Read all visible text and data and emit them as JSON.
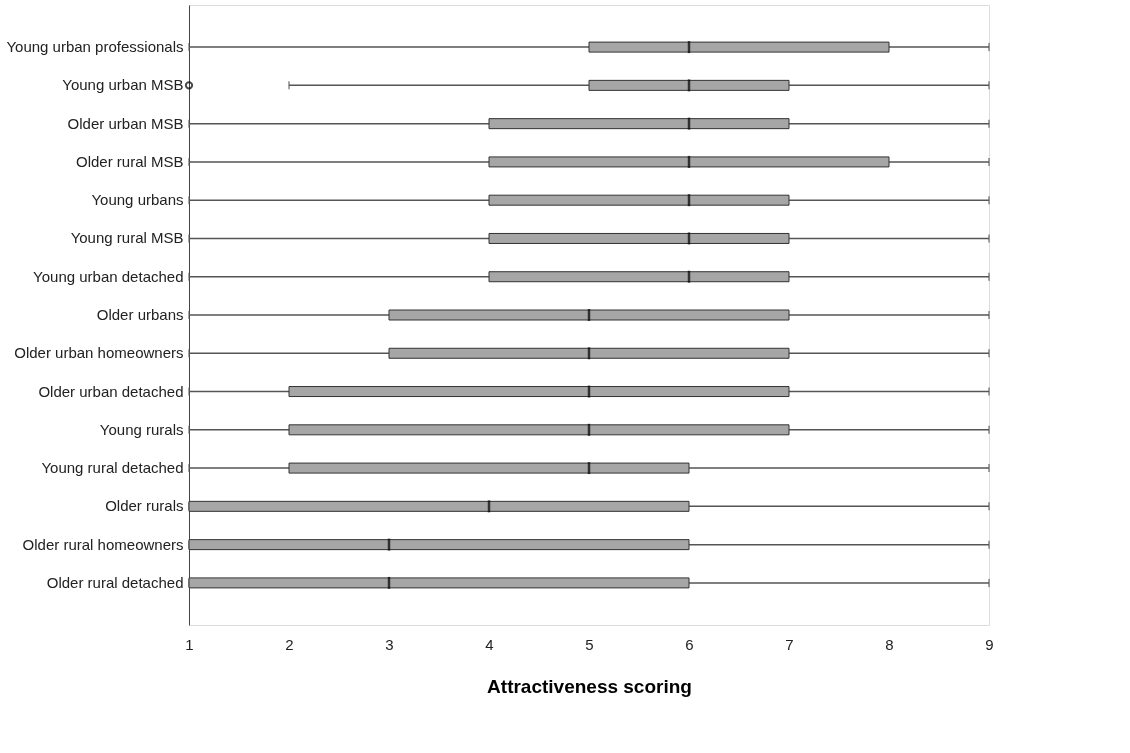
{
  "chart_data": {
    "type": "box",
    "orientation": "horizontal",
    "xlabel": "Attractiveness scoring",
    "color": "#a6a6a6",
    "categories": [
      "Young urban professionals",
      "Young urban MSB",
      "Older urban MSB",
      "Older rural MSB",
      "Young urbans",
      "Young rural MSB",
      "Young urban detached",
      "Older urbans",
      "Older urban homeowners",
      "Older urban detached",
      "Young rurals",
      "Young rural detached",
      "Older rurals",
      "Older rural homeowners",
      "Older rural detached"
    ],
    "boxes": [
      {
        "low": 1,
        "q1": 5,
        "median": 6,
        "q3": 8,
        "high": 9
      },
      {
        "low": 2,
        "q1": 5,
        "median": 6,
        "q3": 7,
        "high": 9,
        "outliers": [
          1
        ]
      },
      {
        "low": 1,
        "q1": 4,
        "median": 6,
        "q3": 7,
        "high": 9
      },
      {
        "low": 1,
        "q1": 4,
        "median": 6,
        "q3": 8,
        "high": 9
      },
      {
        "low": 1,
        "q1": 4,
        "median": 6,
        "q3": 7,
        "high": 9
      },
      {
        "low": 1,
        "q1": 4,
        "median": 6,
        "q3": 7,
        "high": 9
      },
      {
        "low": 1,
        "q1": 4,
        "median": 6,
        "q3": 7,
        "high": 9
      },
      {
        "low": 1,
        "q1": 3,
        "median": 5,
        "q3": 7,
        "high": 9
      },
      {
        "low": 1,
        "q1": 3,
        "median": 5,
        "q3": 7,
        "high": 9
      },
      {
        "low": 1,
        "q1": 2,
        "median": 5,
        "q3": 7,
        "high": 9
      },
      {
        "low": 1,
        "q1": 2,
        "median": 5,
        "q3": 7,
        "high": 9
      },
      {
        "low": 1,
        "q1": 2,
        "median": 5,
        "q3": 6,
        "high": 9
      },
      {
        "low": 1,
        "q1": 1,
        "median": 4,
        "q3": 6,
        "high": 9
      },
      {
        "low": 1,
        "q1": 1,
        "median": 3,
        "q3": 6,
        "high": 9
      },
      {
        "low": 1,
        "q1": 1,
        "median": 3,
        "q3": 6,
        "high": 9
      }
    ],
    "xlim": [
      1,
      9
    ],
    "xticks": [
      1,
      2,
      3,
      4,
      5,
      6,
      7,
      8,
      9
    ],
    "grid": false
  }
}
